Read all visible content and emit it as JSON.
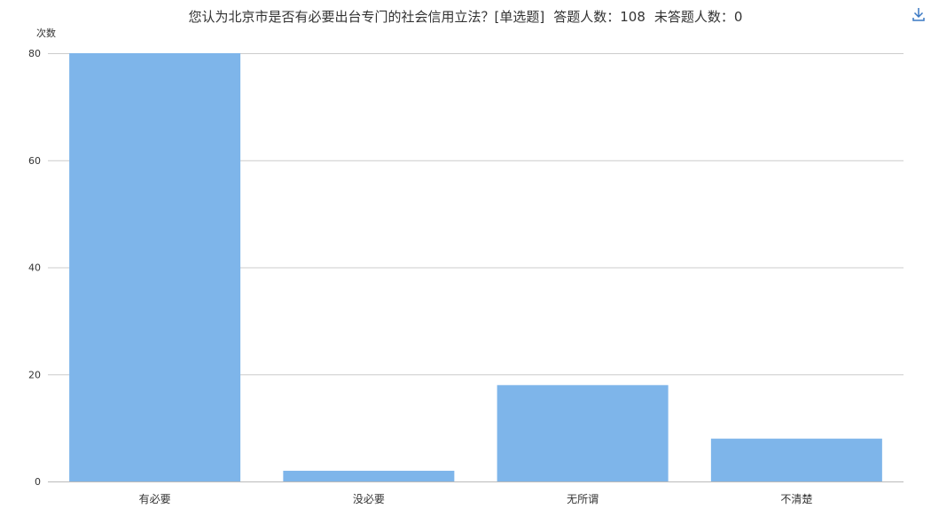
{
  "header": {
    "question": "您认为北京市是否有必要出台专门的社会信用立法？[单选题]",
    "answered_label": "答题人数：108",
    "unanswered_label": "未答题人数：0"
  },
  "toolbar": {
    "download_icon": "download-icon"
  },
  "chart_data": {
    "type": "bar",
    "title": "",
    "xlabel": "",
    "ylabel": "次数",
    "categories": [
      "有必要",
      "没必要",
      "无所谓",
      "不清楚"
    ],
    "values": [
      80,
      2,
      18,
      8
    ],
    "ylim": [
      0,
      80
    ],
    "yticks": [
      0,
      20,
      40,
      60,
      80
    ],
    "grid": true,
    "bar_color": "#7eb5ea",
    "grid_color": "#cccccc"
  }
}
